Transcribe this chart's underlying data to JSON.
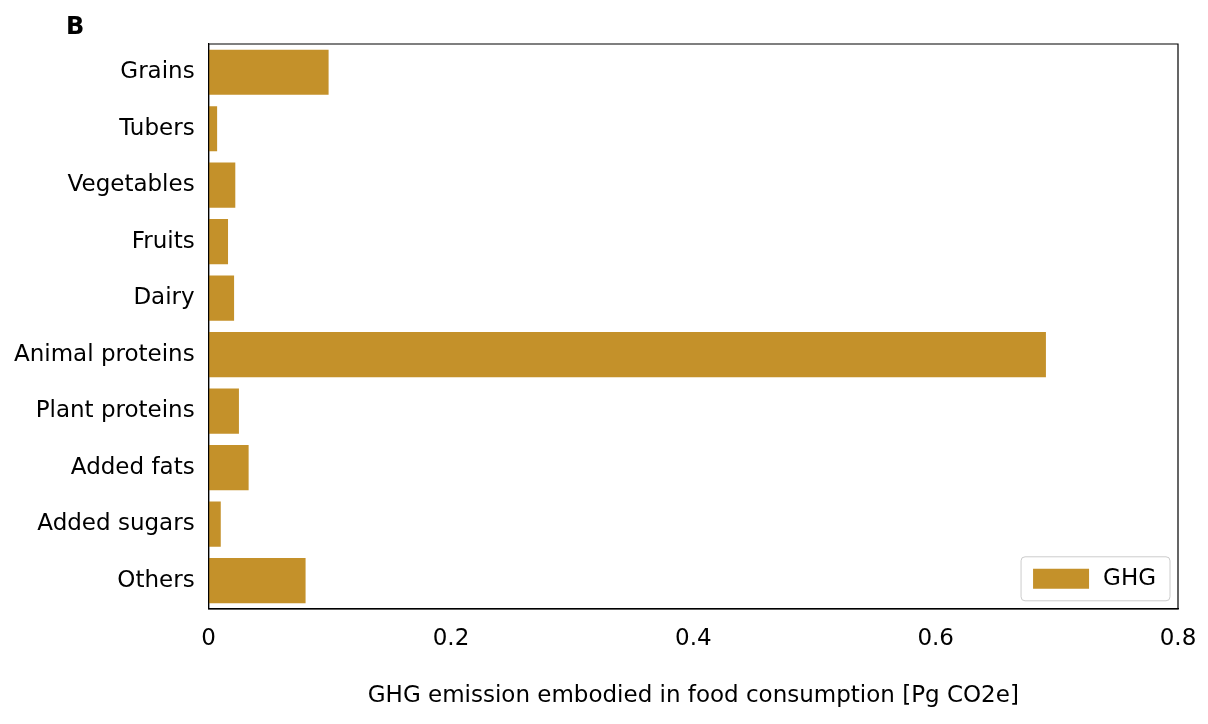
{
  "chart_data": {
    "type": "bar",
    "orientation": "horizontal",
    "categories": [
      "Grains",
      "Tubers",
      "Vegetables",
      "Fruits",
      "Dairy",
      "Animal proteins",
      "Plant proteins",
      "Added fats",
      "Added sugars",
      "Others"
    ],
    "series": [
      {
        "name": "GHG",
        "color": "#c4912a",
        "values": [
          0.099,
          0.007,
          0.022,
          0.016,
          0.021,
          0.691,
          0.025,
          0.033,
          0.01,
          0.08
        ]
      }
    ],
    "xlabel": "GHG emission embodied in food consumption [Pg CO2e]",
    "xlim": [
      0,
      0.8
    ],
    "xticks": [
      0,
      0.2,
      0.4,
      0.6,
      0.8
    ],
    "annotations": [
      "B"
    ],
    "legend": "bottom right",
    "grid": false
  }
}
